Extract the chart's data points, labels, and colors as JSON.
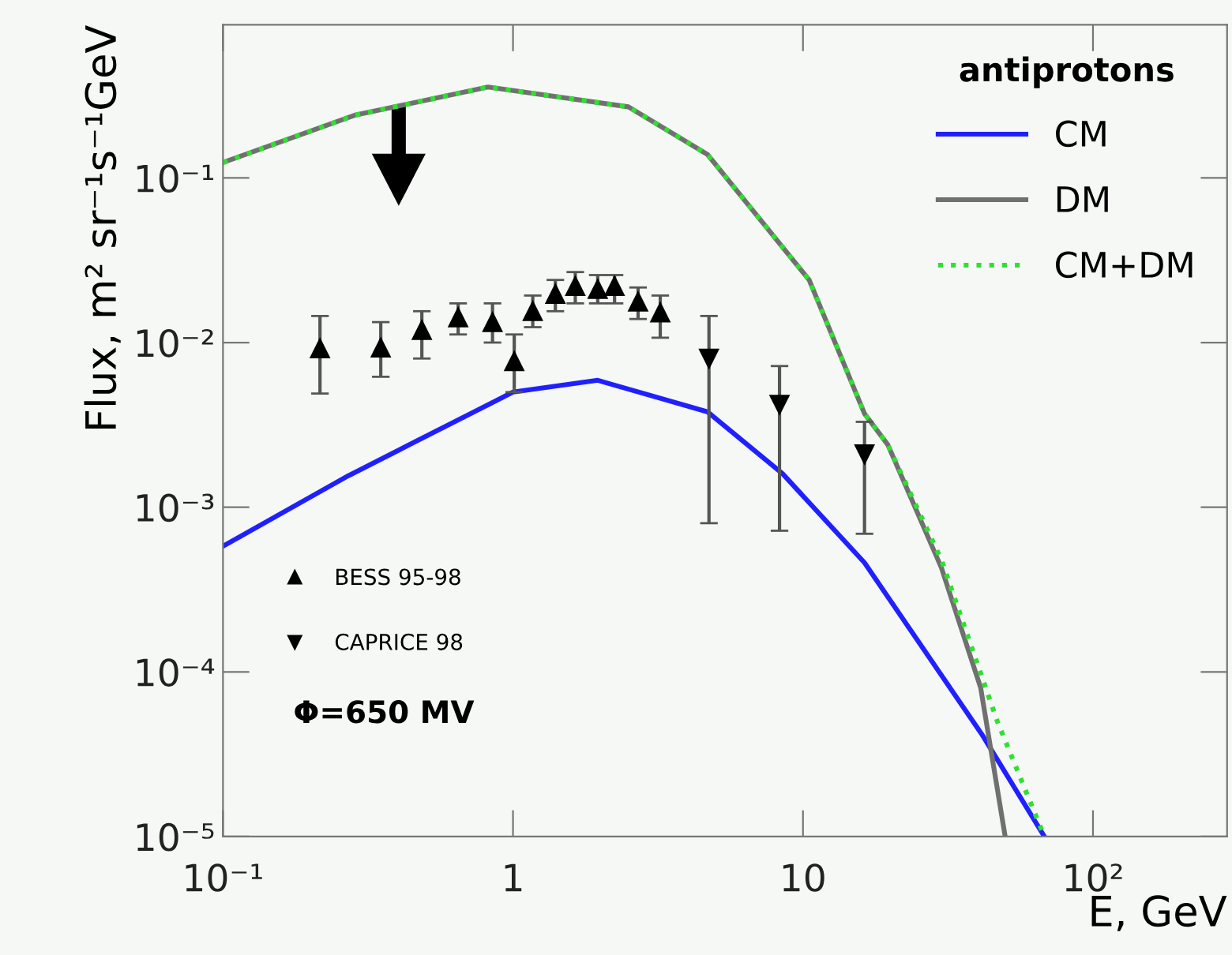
{
  "chart_data": {
    "type": "line",
    "xlabel": "E, GeV",
    "ylabel": "Flux, m² sr⁻¹s⁻¹GeV",
    "legend_title": "antiprotons",
    "legend": "top right",
    "log": "xy",
    "grid": false,
    "xlim": [
      0.1,
      290
    ],
    "ylim": [
      1e-05,
      0.85
    ],
    "xticks": [
      {
        "value": 0.1,
        "label": "10⁻¹"
      },
      1,
      10,
      {
        "value": 100,
        "label": "10²"
      }
    ],
    "yticks": [
      {
        "value": 1e-05,
        "label": "10⁻⁵"
      },
      {
        "value": 0.0001,
        "label": "10⁻⁴"
      },
      {
        "value": 0.001,
        "label": "10⁻³"
      },
      {
        "value": 0.01,
        "label": "10⁻²"
      },
      {
        "value": 0.1,
        "label": "10⁻¹"
      }
    ],
    "annotations": [
      "Φ=650 MV"
    ],
    "series": [
      {
        "name": "CM",
        "color": "#2020ff",
        "line_style": "solid",
        "marker": "none",
        "x": [
          0.1,
          0.27,
          0.44,
          1.0,
          1.96,
          4.68,
          8.5,
          16.3,
          41.3,
          68
        ],
        "values": [
          0.00058,
          0.00155,
          0.0024,
          0.005,
          0.0059,
          0.0038,
          0.0016,
          0.00046,
          4.2e-05,
          1e-05
        ]
      },
      {
        "name": "DM",
        "color": "#707070",
        "line_style": "solid",
        "marker": "none",
        "x": [
          0.1,
          0.284,
          0.82,
          2.5,
          4.68,
          10.5,
          16.3,
          19.6,
          30,
          41,
          49.8
        ],
        "values": [
          0.124,
          0.24,
          0.356,
          0.27,
          0.139,
          0.024,
          0.0037,
          0.0024,
          0.00043,
          8e-05,
          1e-05
        ]
      },
      {
        "name": "CM+DM",
        "color": "#30e030",
        "line_style": "dotted",
        "marker": "none",
        "x": [
          0.1,
          0.284,
          0.82,
          2.5,
          4.68,
          10.5,
          16.3,
          19.6,
          30,
          46.8,
          68
        ],
        "values": [
          0.124,
          0.24,
          0.356,
          0.27,
          0.139,
          0.024,
          0.0037,
          0.0024,
          0.00048,
          5e-05,
          1e-05
        ]
      },
      {
        "name": "BESS 95-98",
        "type": "scatter",
        "color": "#000000",
        "marker": "triangle",
        "x": [
          0.216,
          0.35,
          0.485,
          0.647,
          0.85,
          1.01,
          1.17,
          1.4,
          1.64,
          1.96,
          2.24,
          2.7,
          3.22
        ],
        "values": [
          0.0092,
          0.0093,
          0.0119,
          0.0142,
          0.0133,
          0.0077,
          0.0155,
          0.0197,
          0.022,
          0.0211,
          0.022,
          0.0177,
          0.0152
        ],
        "errors": [
          [
            0.0049,
            0.0145
          ],
          [
            0.0062,
            0.0133
          ],
          [
            0.008,
            0.0155
          ],
          [
            0.0112,
            0.0173
          ],
          [
            0.01,
            0.0173
          ],
          [
            0.005,
            0.0112
          ],
          [
            0.0124,
            0.0193
          ],
          [
            0.0155,
            0.024
          ],
          [
            0.0173,
            0.0268
          ],
          [
            0.0173,
            0.0257
          ],
          [
            0.0173,
            0.0257
          ],
          [
            0.0139,
            0.0216
          ],
          [
            0.0107,
            0.0193
          ]
        ]
      },
      {
        "name": "CAPRICE 98",
        "type": "scatter",
        "color": "#000000",
        "marker": "triangle_down",
        "x": [
          4.74,
          8.3,
          16.3
        ],
        "values": [
          0.008,
          0.0042,
          0.0021
        ],
        "errors": [
          [
            0.0008,
            0.0145
          ],
          [
            0.00072,
            0.0072
          ],
          [
            0.00069,
            0.0033
          ]
        ]
      }
    ]
  }
}
